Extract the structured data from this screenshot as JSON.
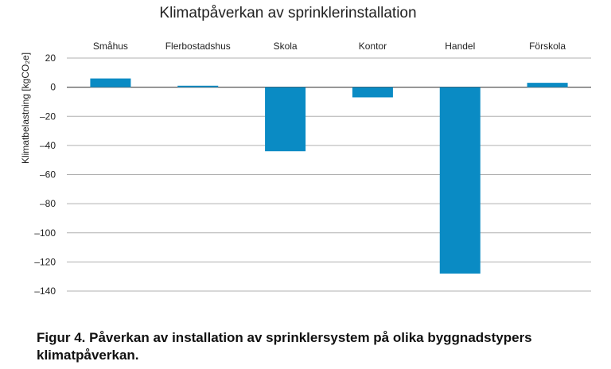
{
  "chart_data": {
    "type": "bar",
    "title": "Klimatpåverkan av sprinklerinstallation",
    "ylabel": "Klimatbelastning [kgCO₂e]",
    "xlabel": "",
    "categories": [
      "Småhus",
      "Flerbostadshus",
      "Skola",
      "Kontor",
      "Handel",
      "Förskola"
    ],
    "values": [
      6,
      1,
      -44,
      -7,
      -128,
      3
    ],
    "ylim": [
      -140,
      20
    ],
    "yticks": [
      20,
      0,
      -20,
      -40,
      -60,
      -80,
      -100,
      -120,
      -140
    ],
    "ytick_labels": [
      "20",
      "0",
      "–20",
      "–40",
      "–60",
      "–80",
      "–100",
      "–120",
      "–140"
    ],
    "grid": true,
    "category_labels_position": "top",
    "bar_color": "#0a8bc4",
    "grid_color": "#b0b0b0"
  },
  "caption": "Figur 4. Påverkan av installation av sprinklersystem på olika byggnadstypers klimatpåverkan."
}
